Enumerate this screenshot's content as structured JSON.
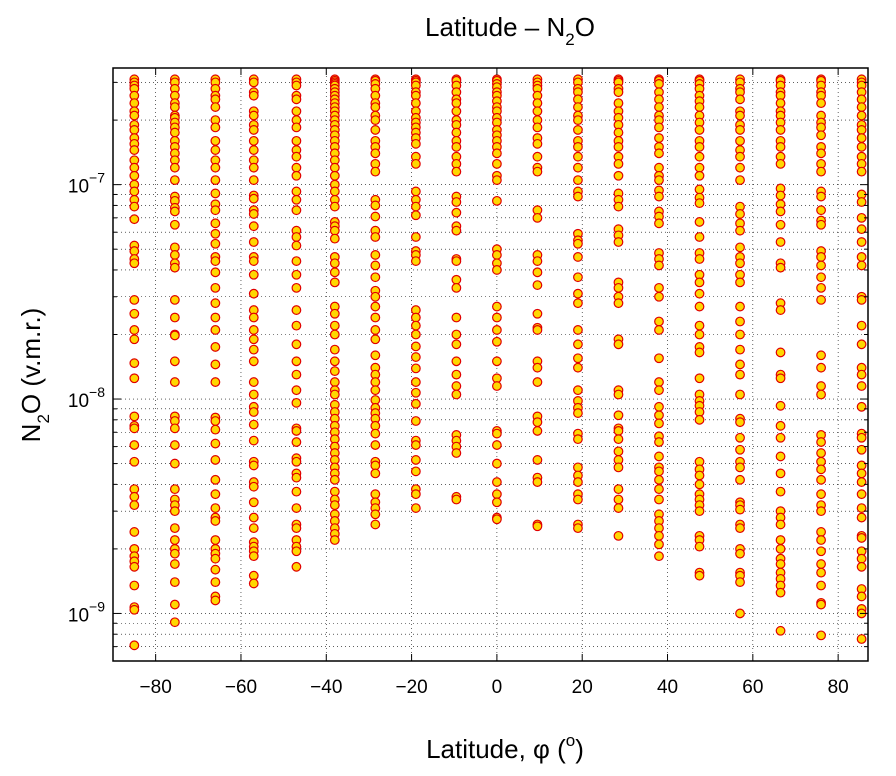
{
  "chart_data": {
    "type": "scatter",
    "title": "Latitude – N",
    "title_sub": "2",
    "title_tail": "O",
    "xlabel": "Latitude, φ (",
    "xlabel_sup": "o",
    "xlabel_tail": ")",
    "ylabel": "N",
    "ylabel_sub": "2",
    "ylabel_tail": "O (v.m.r.)",
    "xlim": [
      -90,
      87
    ],
    "ylim": [
      6e-10,
      3.5e-07
    ],
    "yscale": "log",
    "grid": true,
    "marker_fill": "#ffd700",
    "marker_edge": "#e00000",
    "x_ticks": [
      -80,
      -60,
      -40,
      -20,
      0,
      20,
      40,
      60,
      80
    ],
    "x_tick_labels": [
      "−80",
      "−60",
      "−40",
      "−20",
      "0",
      "20",
      "40",
      "60",
      "80"
    ],
    "y_ticks": [
      {
        "value": 1e-09,
        "base": "10",
        "exp": "−9"
      },
      {
        "value": 1e-08,
        "base": "10",
        "exp": "−8"
      },
      {
        "value": 1e-07,
        "base": "10",
        "exp": "−7"
      }
    ],
    "columns": [
      {
        "lat": -85,
        "y": [
          3.1e-07,
          3e-07,
          2.9e-07,
          2.8e-07,
          2.6e-07,
          2.4e-07,
          2.2e-07,
          2.1e-07,
          1.9e-07,
          1.8e-07,
          1.65e-07,
          1.55e-07,
          1.45e-07,
          1.3e-07,
          1.2e-07,
          1.1e-07,
          1e-07,
          9.3e-08,
          8.5e-08,
          7.9e-08,
          6.9e-08,
          5.2e-08,
          4.9e-08,
          4.5e-08,
          4.3e-08,
          2.9e-08,
          2.5e-08,
          2.1e-08,
          1.9e-08,
          1.47e-08,
          1.25e-08,
          8.3e-09,
          7.5e-09,
          7.3e-09,
          6.1e-09,
          5.1e-09,
          3.8e-09,
          3.5e-09,
          3.2e-09,
          2.4e-09,
          2e-09,
          1.85e-09,
          1.75e-09,
          1.65e-09,
          1.35e-09,
          1.07e-09,
          1.04e-09,
          7.1e-10
        ]
      },
      {
        "lat": -75.5,
        "y": [
          3.1e-07,
          3e-07,
          2.8e-07,
          2.6e-07,
          2.4e-07,
          2.3e-07,
          2.1e-07,
          2.05e-07,
          1.95e-07,
          1.85e-07,
          1.75e-07,
          1.6e-07,
          1.5e-07,
          1.4e-07,
          1.3e-07,
          1.2e-07,
          1.05e-07,
          8.8e-08,
          8.4e-08,
          7.8e-08,
          7.5e-08,
          6.5e-08,
          5.1e-08,
          4.7e-08,
          4.3e-08,
          4.1e-08,
          2.9e-08,
          2.4e-08,
          2e-08,
          1.98e-08,
          1.5e-08,
          1.2e-08,
          8.3e-09,
          7.9e-09,
          7.3e-09,
          6.1e-09,
          5e-09,
          3.8e-09,
          3.4e-09,
          3.2e-09,
          3e-09,
          2.5e-09,
          2.2e-09,
          2e-09,
          1.9e-09,
          1.7e-09,
          1.4e-09,
          1.1e-09,
          9.1e-10
        ]
      },
      {
        "lat": -66,
        "y": [
          3.1e-07,
          3e-07,
          2.8e-07,
          2.6e-07,
          2.5e-07,
          2.3e-07,
          2e-07,
          1.85e-07,
          1.6e-07,
          1.45e-07,
          1.3e-07,
          1.2e-07,
          1.05e-07,
          9.1e-08,
          8.1e-08,
          7.6e-08,
          6.6e-08,
          5.9e-08,
          5.3e-08,
          4.6e-08,
          4.4e-08,
          3.9e-08,
          3.3e-08,
          2.8e-08,
          2.4e-08,
          2.1e-08,
          1.75e-08,
          1.45e-08,
          1.2e-08,
          8.2e-09,
          7.9e-09,
          7.2e-09,
          6.2e-09,
          5.2e-09,
          4.2e-09,
          3.6e-09,
          3.1e-09,
          2.8e-09,
          2.7e-09,
          2.2e-09,
          2e-09,
          1.9e-09,
          1.8e-09,
          1.6e-09,
          1.4e-09,
          1.2e-09,
          1.15e-09
        ]
      },
      {
        "lat": -57,
        "y": [
          3.1e-07,
          3e-07,
          2.7e-07,
          2.6e-07,
          2.2e-07,
          2.1e-07,
          1.9e-07,
          1.8e-07,
          1.6e-07,
          1.45e-07,
          1.3e-07,
          1.2e-07,
          1.05e-07,
          8.9e-08,
          8.6e-08,
          7.6e-08,
          7.3e-08,
          6.4e-08,
          5.4e-08,
          4.6e-08,
          4.4e-08,
          3.8e-08,
          3.1e-08,
          2.6e-08,
          2.4e-08,
          2.1e-08,
          1.9e-08,
          1.7e-08,
          1.5e-08,
          1.2e-08,
          1.05e-08,
          9.2e-09,
          8.7e-09,
          7.6e-09,
          6.4e-09,
          5.1e-09,
          4.9e-09,
          4.1e-09,
          3.9e-09,
          3.3e-09,
          2.8e-09,
          2.5e-09,
          2.15e-09,
          2.05e-09,
          1.95e-09,
          1.85e-09,
          1.5e-09,
          1.38e-09
        ]
      },
      {
        "lat": -47,
        "y": [
          3.1e-07,
          3e-07,
          2.9e-07,
          2.6e-07,
          2.5e-07,
          2.2e-07,
          2e-07,
          1.85e-07,
          1.6e-07,
          1.45e-07,
          1.35e-07,
          1.2e-07,
          1.1e-07,
          9.3e-08,
          8.5e-08,
          7.6e-08,
          6.1e-08,
          5.7e-08,
          5.2e-08,
          4.4e-08,
          3.8e-08,
          3.3e-08,
          2.6e-08,
          2.2e-08,
          1.8e-08,
          1.5e-08,
          1.3e-08,
          1.1e-08,
          9.6e-09,
          7.3e-09,
          7.1e-09,
          6.3e-09,
          5.3e-09,
          5.1e-09,
          4.5e-09,
          4.3e-09,
          3.7e-09,
          3.1e-09,
          2.6e-09,
          2.5e-09,
          2.2e-09,
          2.05e-09,
          1.95e-09,
          1.65e-09
        ]
      },
      {
        "lat": -38,
        "y": [
          3.1e-07,
          3.05e-07,
          3e-07,
          2.95e-07,
          2.9e-07,
          2.8e-07,
          2.7e-07,
          2.6e-07,
          2.5e-07,
          2.4e-07,
          2.3e-07,
          2.2e-07,
          2.1e-07,
          2e-07,
          1.9e-07,
          1.8e-07,
          1.7e-07,
          1.6e-07,
          1.5e-07,
          1.4e-07,
          1.3e-07,
          1.2e-07,
          1.1e-07,
          1e-07,
          9.3e-08,
          8.5e-08,
          7.9e-08,
          6.7e-08,
          6.4e-08,
          6.1e-08,
          5.6e-08,
          4.6e-08,
          4.3e-08,
          3.9e-08,
          3.5e-08,
          2.7e-08,
          2.5e-08,
          2.2e-08,
          2e-08,
          1.7e-08,
          1.5e-08,
          1.35e-08,
          1.2e-08,
          1.1e-08,
          1.05e-08,
          9.4e-09,
          8.7e-09,
          8.1e-09,
          7.5e-09,
          7e-09,
          6.5e-09,
          6e-09,
          5.6e-09,
          5.2e-09,
          4.8e-09,
          4.5e-09,
          4.2e-09,
          3.7e-09,
          3.4e-09,
          3.2e-09,
          2.9e-09,
          2.7e-09,
          2.5e-09,
          2.35e-09,
          2.2e-09
        ]
      },
      {
        "lat": -28.5,
        "y": [
          3.1e-07,
          3.05e-07,
          2.95e-07,
          2.8e-07,
          2.6e-07,
          2.4e-07,
          2.3e-07,
          2.1e-07,
          2e-07,
          1.8e-07,
          1.6e-07,
          1.5e-07,
          1.4e-07,
          1.25e-07,
          1.15e-07,
          8.5e-08,
          8e-08,
          7.1e-08,
          6.1e-08,
          5.7e-08,
          4.7e-08,
          4.2e-08,
          3.7e-08,
          3.2e-08,
          3e-08,
          2.7e-08,
          2.4e-08,
          2.1e-08,
          1.9e-08,
          1.6e-08,
          1.4e-08,
          1.3e-08,
          1.2e-08,
          1.1e-08,
          9.9e-09,
          9.1e-09,
          8.6e-09,
          8.1e-09,
          7.5e-09,
          6.9e-09,
          6.1e-09,
          5.1e-09,
          4.9e-09,
          4.5e-09,
          3.6e-09,
          3.3e-09,
          3.1e-09,
          2.9e-09,
          2.6e-09
        ]
      },
      {
        "lat": -19,
        "y": [
          3.1e-07,
          3.05e-07,
          3e-07,
          2.9e-07,
          2.7e-07,
          2.6e-07,
          2.4e-07,
          2.2e-07,
          2.05e-07,
          1.95e-07,
          1.85e-07,
          1.75e-07,
          1.65e-07,
          1.55e-07,
          1.35e-07,
          1.25e-07,
          9.3e-08,
          8.5e-08,
          7.9e-08,
          7.2e-08,
          5.7e-08,
          4.9e-08,
          4.7e-08,
          4.4e-08,
          2.6e-08,
          2.4e-08,
          2.2e-08,
          2e-08,
          1.76e-08,
          1.57e-08,
          1.39e-08,
          1.2e-08,
          1.07e-08,
          9.5e-09,
          7.9e-09,
          6.4e-09,
          6.1e-09,
          5.2e-09,
          4.6e-09,
          3.8e-09,
          3.6e-09,
          3.1e-09
        ]
      },
      {
        "lat": -9.5,
        "y": [
          3.1e-07,
          3.05e-07,
          2.9e-07,
          2.7e-07,
          2.5e-07,
          2.4e-07,
          2.2e-07,
          2e-07,
          1.9e-07,
          1.75e-07,
          1.6e-07,
          1.5e-07,
          1.35e-07,
          1.25e-07,
          1.15e-07,
          8.8e-08,
          8.3e-08,
          7.4e-08,
          6.4e-08,
          6.1e-08,
          4.5e-08,
          4.4e-08,
          3.6e-08,
          3.3e-08,
          2.4e-08,
          2e-08,
          1.8e-08,
          1.5e-08,
          1.3e-08,
          1.15e-08,
          1.05e-08,
          6.8e-09,
          6.4e-09,
          6e-09,
          5.6e-09,
          3.5e-09,
          3.4e-09
        ]
      },
      {
        "lat": 0,
        "y": [
          3.1e-07,
          3.05e-07,
          2.95e-07,
          2.85e-07,
          2.7e-07,
          2.6e-07,
          2.45e-07,
          2.3e-07,
          2.2e-07,
          2.05e-07,
          1.95e-07,
          1.8e-07,
          1.7e-07,
          1.6e-07,
          1.5e-07,
          1.4e-07,
          1.25e-07,
          1.1e-07,
          1.05e-07,
          8.4e-08,
          5e-08,
          4.7e-08,
          4.3e-08,
          4e-08,
          2.7e-08,
          2.4e-08,
          2.1e-08,
          1.85e-08,
          1.5e-08,
          1.25e-08,
          1.15e-08,
          7.1e-09,
          6.9e-09,
          6.1e-09,
          5e-09,
          4.1e-09,
          3.6e-09,
          3.3e-09,
          2.8e-09,
          2.75e-09
        ]
      },
      {
        "lat": 9.5,
        "y": [
          3.1e-07,
          3e-07,
          2.9e-07,
          2.8e-07,
          2.6e-07,
          2.4e-07,
          2.2e-07,
          2e-07,
          1.85e-07,
          1.65e-07,
          1.55e-07,
          1.35e-07,
          1.2e-07,
          1.15e-07,
          7.6e-08,
          7e-08,
          4.7e-08,
          4.4e-08,
          3.9e-08,
          3.4e-08,
          2.5e-08,
          2.15e-08,
          2.1e-08,
          1.5e-08,
          1.4e-08,
          1.2e-08,
          8.3e-09,
          7.8e-09,
          7.1e-09,
          5.2e-09,
          4.3e-09,
          4.1e-09,
          2.6e-09,
          2.55e-09
        ]
      },
      {
        "lat": 19,
        "y": [
          3.1e-07,
          3e-07,
          2.8e-07,
          2.7e-07,
          2.5e-07,
          2.3e-07,
          2.1e-07,
          2e-07,
          1.8e-07,
          1.6e-07,
          1.5e-07,
          1.35e-07,
          1.2e-07,
          1.05e-07,
          9.3e-08,
          8.8e-08,
          5.9e-08,
          5.5e-08,
          5.3e-08,
          4.6e-08,
          3.7e-08,
          3.1e-08,
          2.8e-08,
          2.1e-08,
          1.8e-08,
          1.55e-08,
          1.4e-08,
          1.1e-08,
          9.8e-09,
          9.1e-09,
          8.6e-09,
          6.9e-09,
          6.5e-09,
          4.8e-09,
          4.4e-09,
          4.1e-09,
          3.6e-09,
          3.4e-09,
          2.6e-09,
          2.5e-09
        ]
      },
      {
        "lat": 28.5,
        "y": [
          3.1e-07,
          3.05e-07,
          3e-07,
          2.8e-07,
          2.7e-07,
          2.4e-07,
          2.2e-07,
          2.05e-07,
          1.9e-07,
          1.75e-07,
          1.6e-07,
          1.5e-07,
          1.35e-07,
          1.25e-07,
          1.1e-07,
          9.1e-08,
          8.5e-08,
          7.9e-08,
          6.2e-08,
          5.8e-08,
          5.4e-08,
          3.5e-08,
          3.3e-08,
          3e-08,
          2.8e-08,
          1.9e-08,
          1.8e-08,
          1.1e-08,
          1.05e-08,
          8.4e-09,
          7.3e-09,
          7.1e-09,
          6.5e-09,
          5.7e-09,
          5.2e-09,
          4.8e-09,
          3.8e-09,
          3.4e-09,
          3.1e-09,
          2.3e-09
        ]
      },
      {
        "lat": 38,
        "y": [
          3.1e-07,
          3.05e-07,
          2.95e-07,
          2.7e-07,
          2.5e-07,
          2.3e-07,
          2.1e-07,
          2e-07,
          1.85e-07,
          1.65e-07,
          1.5e-07,
          1.4e-07,
          1.2e-07,
          1.1e-07,
          1.05e-07,
          9.4e-08,
          8.8e-08,
          7.5e-08,
          7.1e-08,
          6.6e-08,
          4.8e-08,
          4.5e-08,
          4.2e-08,
          3.3e-08,
          3e-08,
          2.3e-08,
          2.1e-08,
          1.55e-08,
          1.2e-08,
          1.1e-08,
          9.2e-09,
          8.4e-09,
          7.7e-09,
          6.7e-09,
          6.3e-09,
          5.4e-09,
          4.8e-09,
          4.6e-09,
          4.2e-09,
          3.8e-09,
          3.4e-09,
          2.9e-09,
          2.7e-09,
          2.5e-09,
          2.3e-09,
          2.1e-09,
          1.85e-09
        ]
      },
      {
        "lat": 47.5,
        "y": [
          3.1e-07,
          3.05e-07,
          2.95e-07,
          2.8e-07,
          2.6e-07,
          2.45e-07,
          2.3e-07,
          2.1e-07,
          1.95e-07,
          1.8e-07,
          1.6e-07,
          1.5e-07,
          1.35e-07,
          1.2e-07,
          1.1e-07,
          9.5e-08,
          8.7e-08,
          8.2e-08,
          6.7e-08,
          5.7e-08,
          4.8e-08,
          4.5e-08,
          3.8e-08,
          3.5e-08,
          3.1e-08,
          2.7e-08,
          2.2e-08,
          2e-08,
          1.75e-08,
          1.65e-08,
          1.25e-08,
          1.05e-08,
          9.8e-09,
          9.3e-09,
          8.7e-09,
          8e-09,
          5.1e-09,
          4.7e-09,
          4.4e-09,
          4e-09,
          3.6e-09,
          3.4e-09,
          3.2e-09,
          3e-09,
          2.3e-09,
          2.2e-09,
          2.05e-09,
          1.55e-09,
          1.5e-09
        ]
      },
      {
        "lat": 57,
        "y": [
          3.1e-07,
          3e-07,
          2.8e-07,
          2.7e-07,
          2.5e-07,
          2.2e-07,
          2.1e-07,
          1.9e-07,
          1.8e-07,
          1.6e-07,
          1.45e-07,
          1.35e-07,
          1.2e-07,
          1.05e-07,
          7.9e-08,
          7.3e-08,
          6.6e-08,
          6.1e-08,
          5.1e-08,
          4.6e-08,
          4.3e-08,
          3.8e-08,
          3.5e-08,
          2.7e-08,
          2.3e-08,
          2e-08,
          1.7e-08,
          1.45e-08,
          1.3e-08,
          1.05e-08,
          8.1e-09,
          7.8e-09,
          6.6e-09,
          5.8e-09,
          5.1e-09,
          4.8e-09,
          4.2e-09,
          3.3e-09,
          3.2e-09,
          3.05e-09,
          2.6e-09,
          2.5e-09,
          2e-09,
          1.9e-09,
          1.55e-09,
          1.5e-09,
          1.4e-09,
          1e-09
        ]
      },
      {
        "lat": 66.5,
        "y": [
          3.1e-07,
          3.05e-07,
          2.9e-07,
          2.7e-07,
          2.6e-07,
          2.4e-07,
          2.2e-07,
          2.1e-07,
          1.95e-07,
          1.8e-07,
          1.6e-07,
          1.5e-07,
          1.35e-07,
          1.25e-07,
          9.6e-08,
          8.9e-08,
          8.1e-08,
          7.5e-08,
          6.5e-08,
          5.4e-08,
          4.3e-08,
          4.1e-08,
          2.8e-08,
          2.6e-08,
          1.65e-08,
          1.3e-08,
          1.25e-08,
          9.3e-09,
          7.5e-09,
          6.6e-09,
          5.4e-09,
          4.5e-09,
          3.7e-09,
          3e-09,
          2.8e-09,
          2.6e-09,
          2.2e-09,
          2e-09,
          1.8e-09,
          1.7e-09,
          1.55e-09,
          1.45e-09,
          1.35e-09,
          1.25e-09,
          8.3e-10
        ]
      },
      {
        "lat": 76,
        "y": [
          3.1e-07,
          3.05e-07,
          2.9e-07,
          2.7e-07,
          2.6e-07,
          2.4e-07,
          2.1e-07,
          1.95e-07,
          1.85e-07,
          1.7e-07,
          1.5e-07,
          1.4e-07,
          1.25e-07,
          1.15e-07,
          9.3e-08,
          8.8e-08,
          7.6e-08,
          6.8e-08,
          6.5e-08,
          4.9e-08,
          4.6e-08,
          4.2e-08,
          3.7e-08,
          3.3e-08,
          2.9e-08,
          1.6e-08,
          1.4e-08,
          1.15e-08,
          1.05e-08,
          6.8e-09,
          6.3e-09,
          5.6e-09,
          5.1e-09,
          4.7e-09,
          4.2e-09,
          3.6e-09,
          3.2e-09,
          3e-09,
          2.4e-09,
          2.2e-09,
          1.95e-09,
          1.7e-09,
          1.55e-09,
          1.35e-09,
          1.12e-09,
          1.1e-09,
          7.9e-10
        ]
      },
      {
        "lat": 85.5,
        "y": [
          3.1e-07,
          3e-07,
          2.9e-07,
          2.7e-07,
          2.5e-07,
          2.3e-07,
          2.1e-07,
          1.9e-07,
          1.8e-07,
          1.65e-07,
          1.5e-07,
          1.35e-07,
          1.25e-07,
          1.15e-07,
          9e-08,
          8.3e-08,
          7e-08,
          6.2e-08,
          5.4e-08,
          4.6e-08,
          4.2e-08,
          3e-08,
          2.9e-08,
          2.2e-08,
          1.8e-08,
          1.4e-08,
          1.3e-08,
          1.15e-08,
          9.2e-09,
          6.9e-09,
          6.6e-09,
          5.8e-09,
          4.9e-09,
          4.5e-09,
          4.1e-09,
          3.6e-09,
          3.1e-09,
          2.8e-09,
          2.3e-09,
          2.25e-09,
          1.95e-09,
          1.8e-09,
          1.65e-09,
          1.3e-09,
          1.2e-09,
          1.05e-09,
          1e-09,
          7.6e-10
        ]
      }
    ]
  }
}
